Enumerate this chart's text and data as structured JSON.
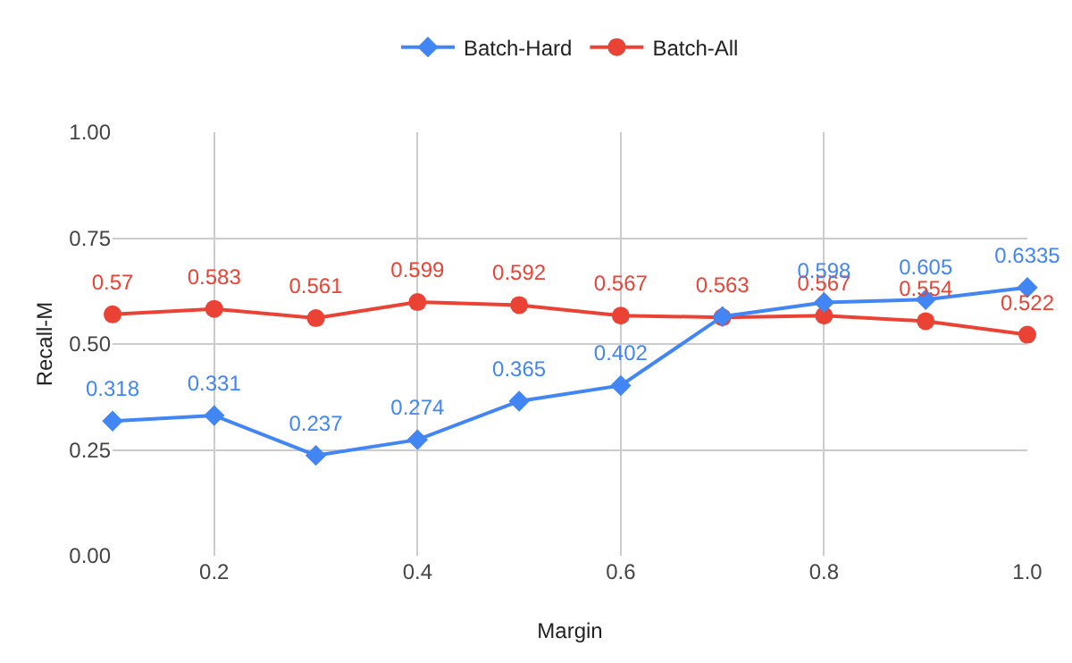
{
  "chart_data": {
    "type": "line",
    "xlabel": "Margin",
    "ylabel": "Recall-M",
    "x": [
      0.1,
      0.2,
      0.3,
      0.4,
      0.5,
      0.6,
      0.7,
      0.8,
      0.9,
      1.0
    ],
    "series": [
      {
        "name": "Batch-Hard",
        "color": "#4285f4",
        "marker": "diamond",
        "values": [
          0.318,
          0.331,
          0.237,
          0.274,
          0.365,
          0.402,
          0.565,
          0.598,
          0.605,
          0.6335
        ],
        "value_labels": [
          "0.318",
          "0.331",
          "0.237",
          "0.274",
          "0.365",
          "0.402",
          null,
          "0.598",
          "0.605",
          "0.6335"
        ]
      },
      {
        "name": "Batch-All",
        "color": "#ea4335",
        "marker": "circle",
        "values": [
          0.57,
          0.583,
          0.561,
          0.599,
          0.592,
          0.567,
          0.563,
          0.567,
          0.554,
          0.522
        ],
        "value_labels": [
          "0.57",
          "0.583",
          "0.561",
          "0.599",
          "0.592",
          "0.567",
          "0.563",
          "0.567",
          "0.554",
          "0.522"
        ]
      }
    ],
    "xlim": [
      0.1,
      1.0
    ],
    "xticks": [
      0.2,
      0.4,
      0.6,
      0.8,
      {
        "value": 1.0,
        "label": "1.0"
      }
    ],
    "ylim": [
      0,
      1
    ],
    "yticks": [
      {
        "value": 0,
        "label": "0.00"
      },
      {
        "value": 0.25,
        "label": "0.25"
      },
      {
        "value": 0.5,
        "label": "0.50"
      },
      {
        "value": 0.75,
        "label": "0.75"
      },
      {
        "value": 1,
        "label": "1.00"
      }
    ],
    "grid": true,
    "legend": "top"
  }
}
